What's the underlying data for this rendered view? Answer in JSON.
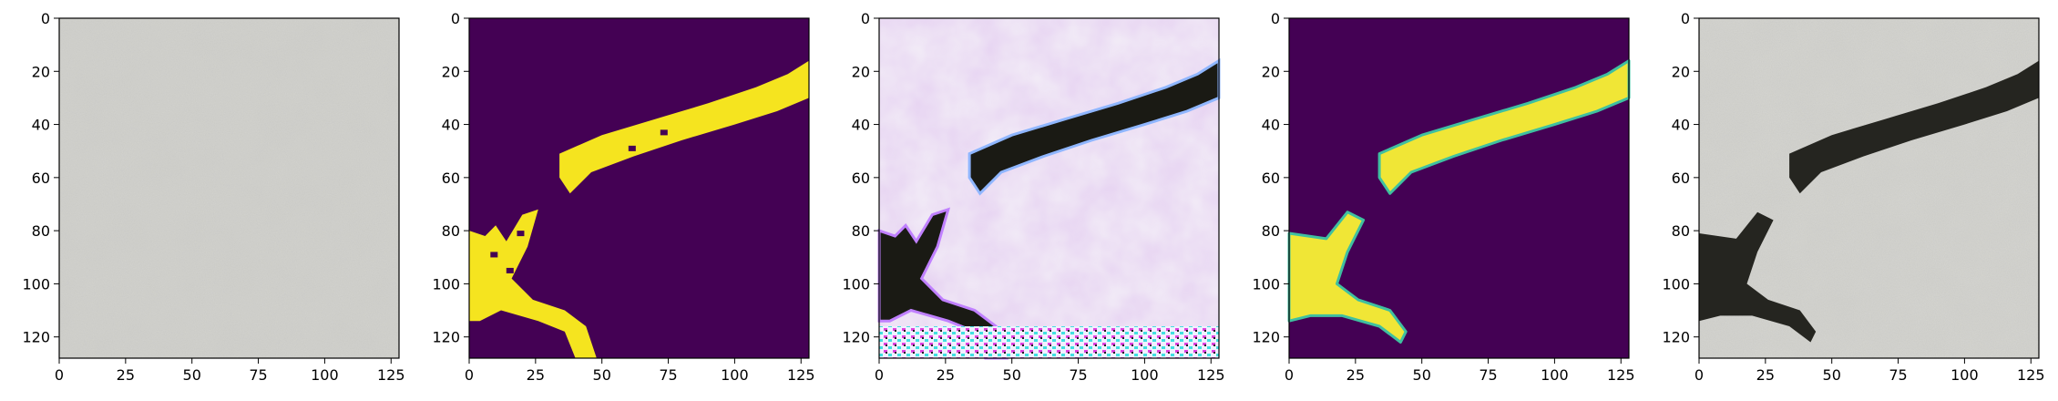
{
  "figure": {
    "panels": [
      {
        "id": "panel-1",
        "content": "concrete-texture-photo",
        "colors": {
          "base": "#d3d3cf",
          "speck": "#b8b8b2"
        }
      },
      {
        "id": "panel-2",
        "content": "binary-crack-mask-jagged",
        "colors": {
          "background": "#440154",
          "crack": "#f5e41f"
        }
      },
      {
        "id": "panel-3",
        "content": "synthesized-crack-with-artifacts",
        "colors": {
          "background": "#f3eef7",
          "crack": "#1a1a14",
          "artifact": "#d0a8e8"
        }
      },
      {
        "id": "panel-4",
        "content": "smooth-crack-mask",
        "colors": {
          "background": "#440154",
          "crack": "#f0e636",
          "edge": "#3fc0a0"
        }
      },
      {
        "id": "panel-5",
        "content": "concrete-with-crack-composite",
        "colors": {
          "base": "#d6d6d2",
          "crack": "#252520"
        }
      }
    ],
    "x_ticks": [
      "0",
      "25",
      "50",
      "75",
      "100",
      "125"
    ],
    "y_ticks": [
      "0",
      "20",
      "40",
      "60",
      "80",
      "100",
      "120"
    ]
  }
}
